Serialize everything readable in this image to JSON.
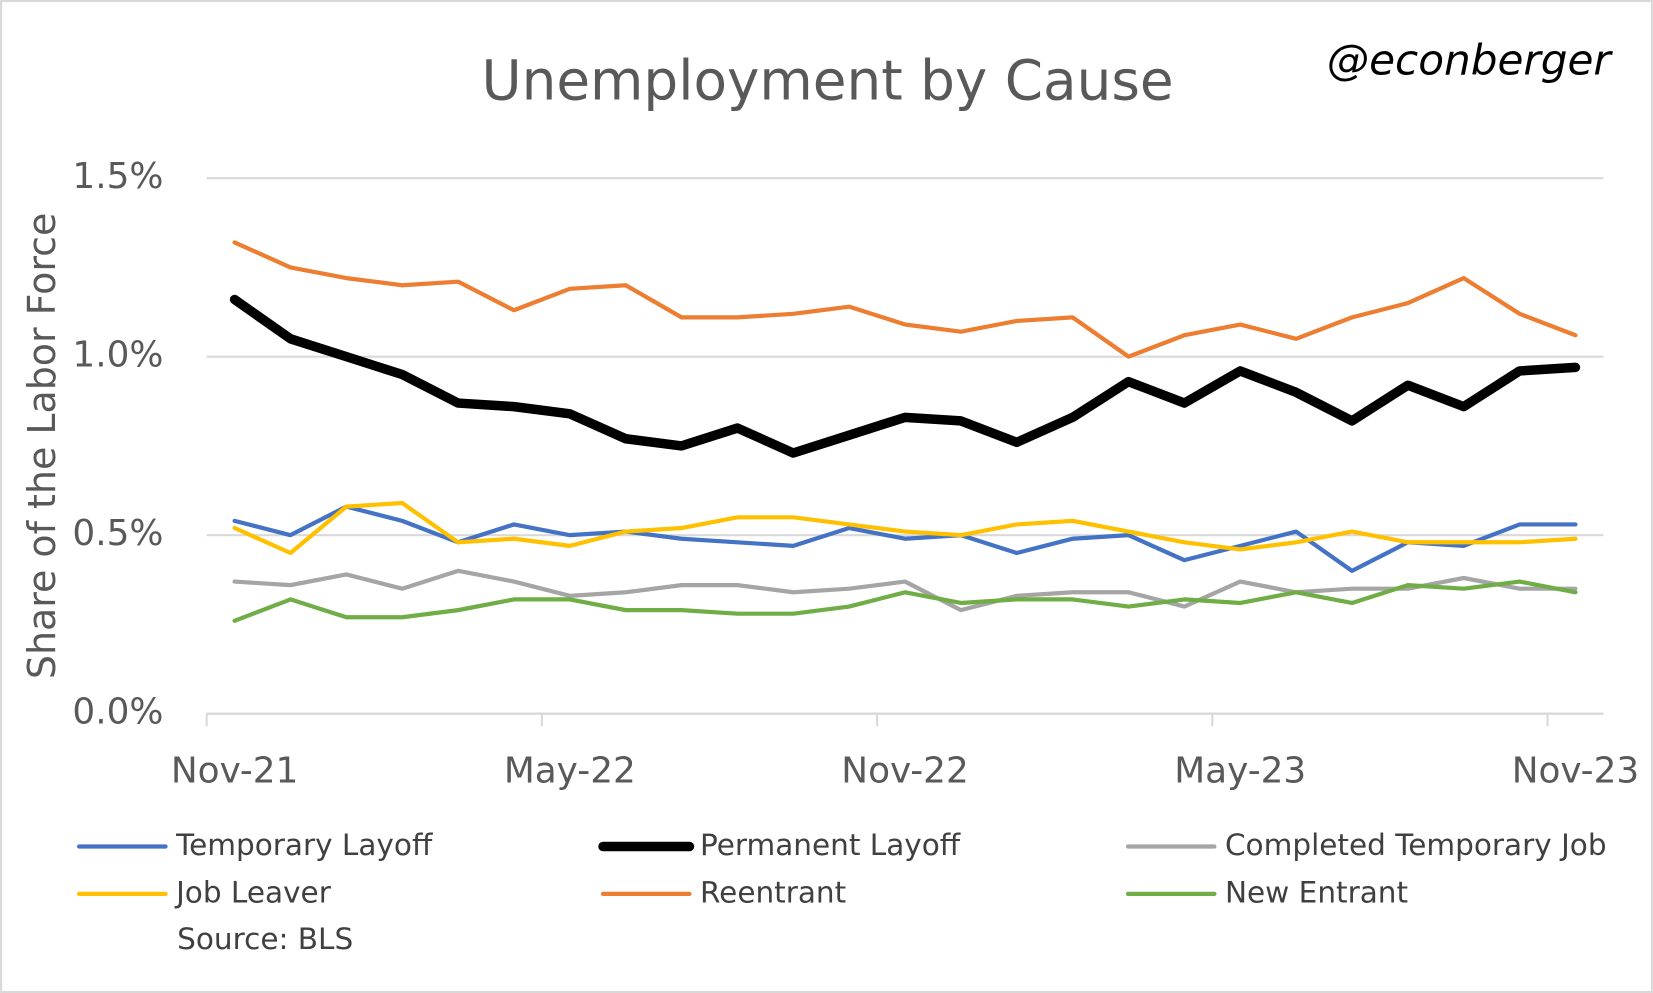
{
  "chart_data": {
    "type": "line",
    "title": "Unemployment by Cause",
    "annotation": "@econberger",
    "y_label": "Share of the Labor Force",
    "source": "Source: BLS",
    "categories": [
      "Nov-21",
      null,
      null,
      null,
      null,
      null,
      "May-22",
      null,
      null,
      null,
      null,
      null,
      "Nov-22",
      null,
      null,
      null,
      null,
      null,
      "May-23",
      null,
      null,
      null,
      null,
      null,
      "Nov-23"
    ],
    "ylim": [
      0,
      1.5
    ],
    "yticks": [
      {
        "value": 0,
        "label": "0.0%"
      },
      {
        "value": 0.5,
        "label": "0.5%"
      },
      {
        "value": 1,
        "label": "1.0%"
      },
      {
        "value": 1.5,
        "label": "1.5%"
      }
    ],
    "grid": true,
    "legend": "bottom",
    "series": [
      {
        "name": "Temporary Layoff",
        "color": "#4472c4",
        "width": 4,
        "values": [
          0.54,
          0.5,
          0.58,
          0.54,
          0.48,
          0.53,
          0.5,
          0.51,
          0.49,
          0.48,
          0.47,
          0.52,
          0.49,
          0.5,
          0.45,
          0.49,
          0.5,
          0.43,
          0.47,
          0.51,
          0.4,
          0.48,
          0.47,
          0.53,
          0.53
        ]
      },
      {
        "name": "Permanent Layoff",
        "color": "#000000",
        "width": 9,
        "values": [
          1.16,
          1.05,
          1.0,
          0.95,
          0.87,
          0.86,
          0.84,
          0.77,
          0.75,
          0.8,
          0.73,
          0.78,
          0.83,
          0.82,
          0.76,
          0.83,
          0.93,
          0.87,
          0.96,
          0.9,
          0.82,
          0.92,
          0.86,
          0.96,
          0.97
        ]
      },
      {
        "name": "Completed Temporary Job",
        "color": "#a5a5a5",
        "width": 4,
        "values": [
          0.37,
          0.36,
          0.39,
          0.35,
          0.4,
          0.37,
          0.33,
          0.34,
          0.36,
          0.36,
          0.34,
          0.35,
          0.37,
          0.29,
          0.33,
          0.34,
          0.34,
          0.3,
          0.37,
          0.34,
          0.35,
          0.35,
          0.38,
          0.35,
          0.35
        ]
      },
      {
        "name": "Job Leaver",
        "color": "#ffc000",
        "width": 4,
        "values": [
          0.52,
          0.45,
          0.58,
          0.59,
          0.48,
          0.49,
          0.47,
          0.51,
          0.52,
          0.55,
          0.55,
          0.53,
          0.51,
          0.5,
          0.53,
          0.54,
          0.51,
          0.48,
          0.46,
          0.48,
          0.51,
          0.48,
          0.48,
          0.48,
          0.49
        ]
      },
      {
        "name": "Reentrant",
        "color": "#ed7d31",
        "width": 4,
        "values": [
          1.32,
          1.25,
          1.22,
          1.2,
          1.21,
          1.13,
          1.19,
          1.2,
          1.11,
          1.11,
          1.12,
          1.14,
          1.09,
          1.07,
          1.1,
          1.11,
          1.0,
          1.06,
          1.09,
          1.05,
          1.11,
          1.15,
          1.22,
          1.12,
          1.06
        ]
      },
      {
        "name": "New Entrant",
        "color": "#70ad47",
        "width": 4,
        "values": [
          0.26,
          0.32,
          0.27,
          0.27,
          0.29,
          0.32,
          0.32,
          0.29,
          0.29,
          0.28,
          0.28,
          0.3,
          0.34,
          0.31,
          0.32,
          0.32,
          0.3,
          0.32,
          0.31,
          0.34,
          0.31,
          0.36,
          0.35,
          0.37,
          0.34
        ]
      }
    ]
  }
}
